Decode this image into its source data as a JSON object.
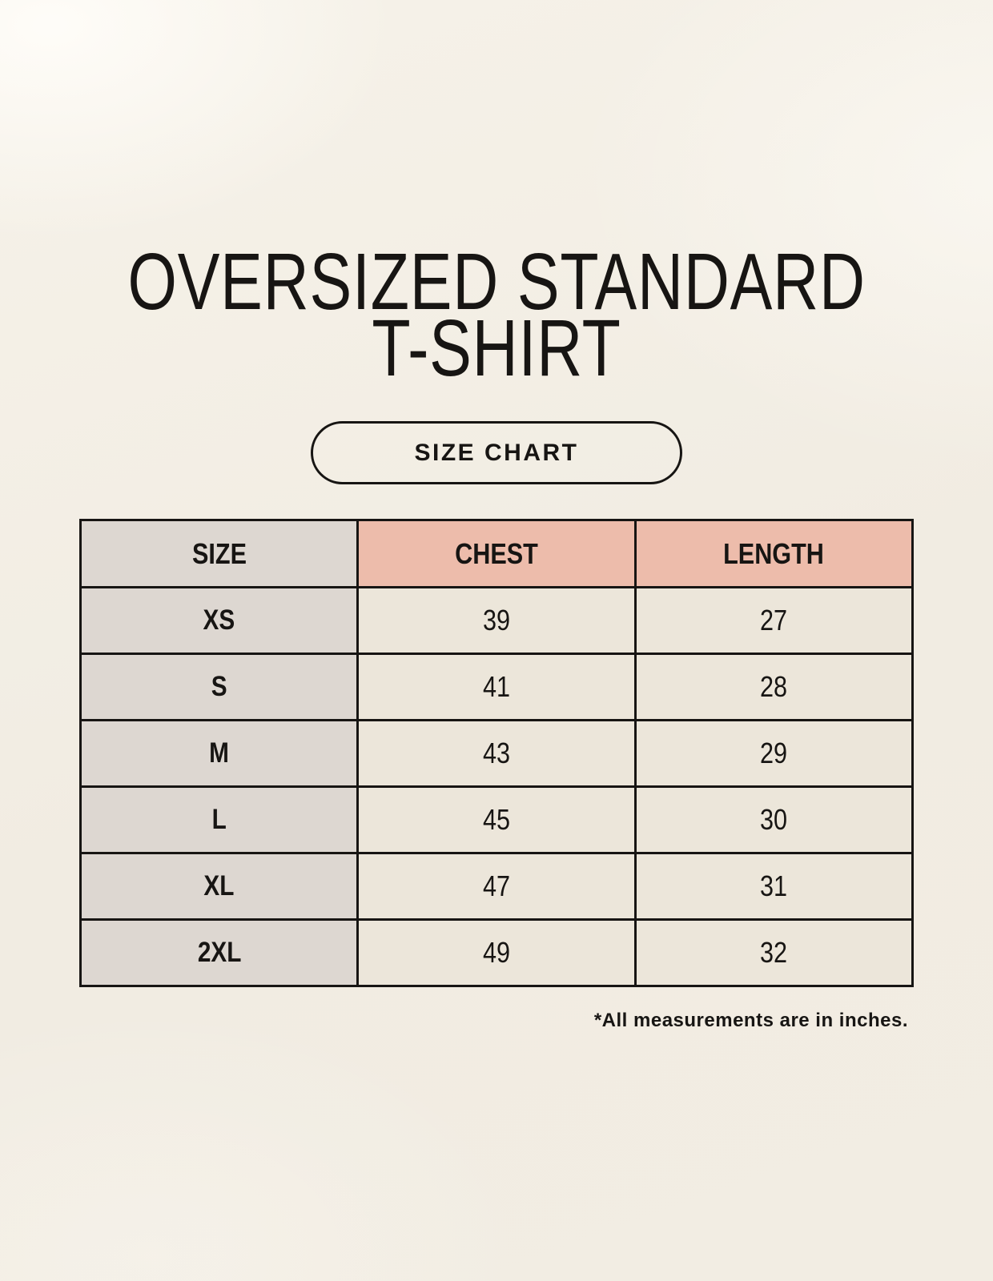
{
  "title": {
    "line1": "OVERSIZED STANDARD",
    "line2": "T-SHIRT"
  },
  "size_chart_button": {
    "label": "SIZE CHART"
  },
  "table": {
    "headers": {
      "size": "SIZE",
      "chest": "CHEST",
      "length": "LENGTH"
    },
    "rows": [
      {
        "size": "XS",
        "chest": "39",
        "length": "27"
      },
      {
        "size": "S",
        "chest": "41",
        "length": "28"
      },
      {
        "size": "M",
        "chest": "43",
        "length": "29"
      },
      {
        "size": "L",
        "chest": "45",
        "length": "30"
      },
      {
        "size": "XL",
        "chest": "47",
        "length": "31"
      },
      {
        "size": "2XL",
        "chest": "49",
        "length": "32"
      }
    ]
  },
  "footnote": "*All measurements are in inches.",
  "colors": {
    "page_background": "#f1ece2",
    "size_column_background": "#ddd7d1",
    "measure_header_background": "#edbcab",
    "data_cell_background": "#ece6da",
    "border_and_text": "#171513"
  }
}
